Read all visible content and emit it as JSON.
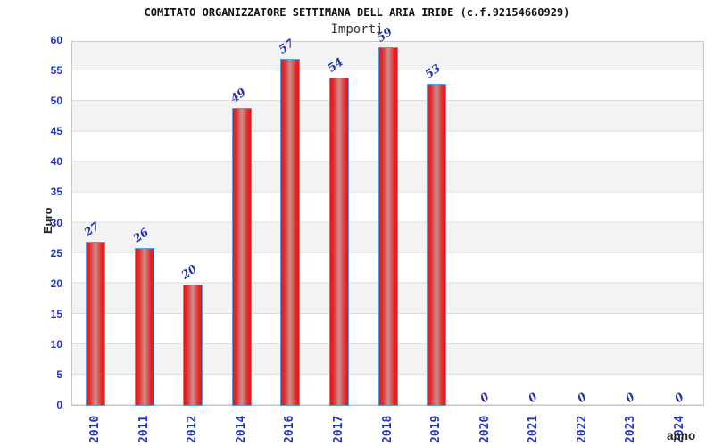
{
  "header": {
    "title": "COMITATO ORGANIZZATORE SETTIMANA DELL ARIA IRIDE (c.f.92154660929)",
    "subtitle": "Importi"
  },
  "chart_data": {
    "type": "bar",
    "title": "COMITATO ORGANIZZATORE SETTIMANA DELL ARIA IRIDE (c.f.92154660929)",
    "subtitle": "Importi",
    "xlabel": "anno",
    "ylabel": "Euro",
    "categories": [
      "2010",
      "2011",
      "2012",
      "2014",
      "2016",
      "2017",
      "2018",
      "2019",
      "2020",
      "2021",
      "2022",
      "2023",
      "2024"
    ],
    "values": [
      27,
      26,
      20,
      49,
      57,
      54,
      59,
      53,
      0,
      0,
      0,
      0,
      0
    ],
    "series": [
      {
        "name": "Importi",
        "values": [
          27,
          26,
          20,
          49,
          57,
          54,
          59,
          53,
          0,
          0,
          0,
          0,
          0
        ]
      }
    ],
    "ylim": [
      0,
      60
    ],
    "ytick_step": 5,
    "yticks": [
      0,
      5,
      10,
      15,
      20,
      25,
      30,
      35,
      40,
      45,
      50,
      55,
      60
    ],
    "grid": "horizontal-bands-alternating",
    "legend": "none",
    "bar_labels_shown": true
  },
  "colors": {
    "axis_text": "#2233cc",
    "value_label": "#2233aa",
    "bar_fill": "#e32020",
    "bar_fill_center": "#cd918e",
    "bar_border": "#5b9ee0",
    "band": "#f3f3f3",
    "gridline": "#dedede",
    "plot_border": "#c8c8c8",
    "title_text": "#111111",
    "subtitle_text": "#333333"
  }
}
